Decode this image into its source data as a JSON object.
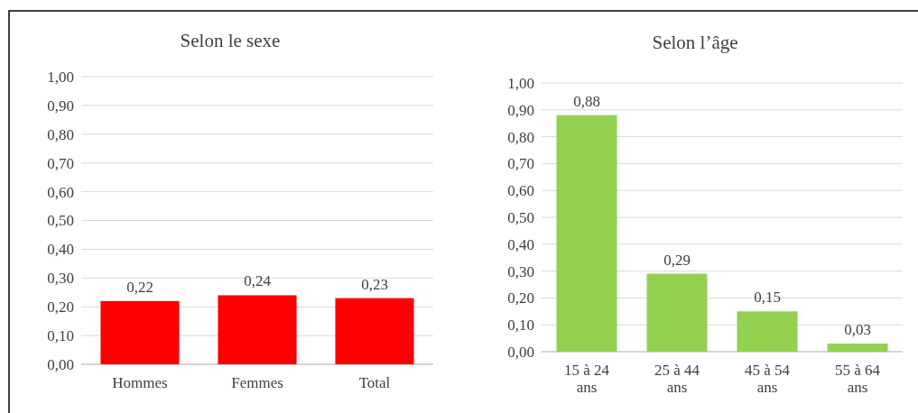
{
  "chart_data": [
    {
      "type": "bar",
      "title": "Selon le sexe",
      "categories": [
        "Hommes",
        "Femmes",
        "Total"
      ],
      "values": [
        0.22,
        0.24,
        0.23
      ],
      "color": "#ff0000",
      "ylim": [
        0,
        1
      ],
      "yticks": [
        {
          "value": 0,
          "label": "0,00"
        },
        {
          "value": 0.1,
          "label": "0,10"
        },
        {
          "value": 0.2,
          "label": "0,20"
        },
        {
          "value": 0.3,
          "label": "0,30"
        },
        {
          "value": 0.4,
          "label": "0,40"
        },
        {
          "value": 0.5,
          "label": "0,50"
        },
        {
          "value": 0.6,
          "label": "0,60"
        },
        {
          "value": 0.7,
          "label": "0,70"
        },
        {
          "value": 0.8,
          "label": "0,80"
        },
        {
          "value": 0.9,
          "label": "0,90"
        },
        {
          "value": 1,
          "label": "1,00"
        }
      ],
      "grid": "y",
      "value_labels": [
        "0,22",
        "0,24",
        "0,23"
      ]
    },
    {
      "type": "bar",
      "title": "Selon l’âge",
      "categories": [
        "15 à 24 ans",
        "25 à 44 ans",
        "45 à 54 ans",
        "55 à 64 ans"
      ],
      "values": [
        0.88,
        0.29,
        0.15,
        0.03
      ],
      "color": "#92d050",
      "ylim": [
        0,
        1
      ],
      "yticks": [
        {
          "value": 0,
          "label": "0,00"
        },
        {
          "value": 0.1,
          "label": "0,10"
        },
        {
          "value": 0.2,
          "label": "0,20"
        },
        {
          "value": 0.3,
          "label": "0,30"
        },
        {
          "value": 0.4,
          "label": "0,40"
        },
        {
          "value": 0.5,
          "label": "0,50"
        },
        {
          "value": 0.6,
          "label": "0,60"
        },
        {
          "value": 0.7,
          "label": "0,70"
        },
        {
          "value": 0.8,
          "label": "0,80"
        },
        {
          "value": 0.9,
          "label": "0,90"
        },
        {
          "value": 1,
          "label": "1,00"
        }
      ],
      "grid": "y",
      "value_labels": [
        "0,88",
        "0,29",
        "0,15",
        "0,03"
      ]
    }
  ]
}
